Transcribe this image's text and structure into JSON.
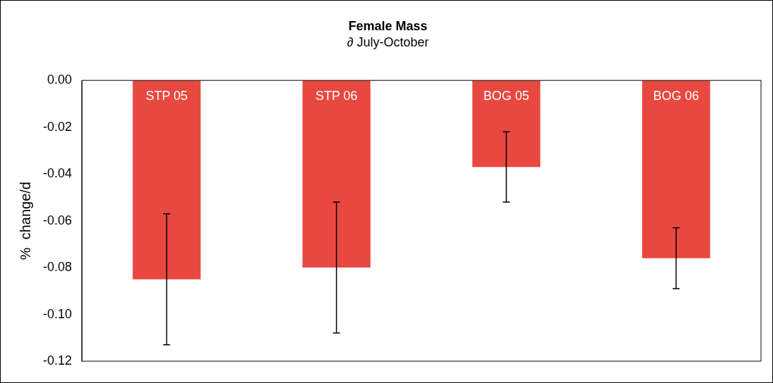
{
  "chart_data": {
    "type": "bar",
    "title": "Female Mass",
    "subtitle": "∂ July-October",
    "ylabel": "%  change/d",
    "categories": [
      "STP 05",
      "STP 06",
      "BOG 05",
      "BOG 06"
    ],
    "values": [
      -0.085,
      -0.08,
      -0.037,
      -0.076
    ],
    "errors": [
      0.028,
      0.028,
      0.015,
      0.013
    ],
    "color": "#e84840",
    "ylim": [
      -0.12,
      0
    ],
    "yticks": [
      {
        "value": 0,
        "label": "0.00"
      },
      {
        "value": -0.02,
        "label": "-0.02"
      },
      {
        "value": -0.04,
        "label": "-0.04"
      },
      {
        "value": -0.06,
        "label": "-0.06"
      },
      {
        "value": -0.08,
        "label": "-0.08"
      },
      {
        "value": -0.1,
        "label": "-0.10"
      },
      {
        "value": -0.12,
        "label": "-0.12"
      }
    ],
    "tick_labels": "y",
    "grid": false,
    "legend": false
  }
}
